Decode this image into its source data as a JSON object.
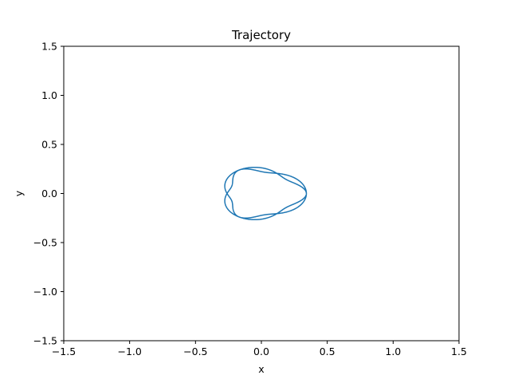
{
  "chart_data": {
    "type": "line",
    "title": "Trajectory",
    "xlabel": "x",
    "ylabel": "y",
    "xlim": [
      -1.5,
      1.5
    ],
    "ylim": [
      -1.5,
      1.5
    ],
    "xticks": [
      -1.5,
      -1.0,
      -0.5,
      0.0,
      0.5,
      1.0,
      1.5
    ],
    "yticks": [
      -1.5,
      -1.0,
      -0.5,
      0.0,
      0.5,
      1.0,
      1.5
    ],
    "xtick_labels": [
      "−1.5",
      "−1.0",
      "−0.5",
      "0.0",
      "0.5",
      "1.0",
      "1.5"
    ],
    "ytick_labels": [
      "−1.5",
      "−1.0",
      "−0.5",
      "0.0",
      "0.5",
      "1.0",
      "1.5"
    ],
    "grid": false,
    "series": [
      {
        "color": "#1f77b4",
        "values_description_free": true,
        "x": [],
        "y": []
      }
    ],
    "curve": {
      "a": 0.26,
      "b": 0.045,
      "k": 3,
      "p": 0.3,
      "turns": 6,
      "samples": 3000
    }
  }
}
